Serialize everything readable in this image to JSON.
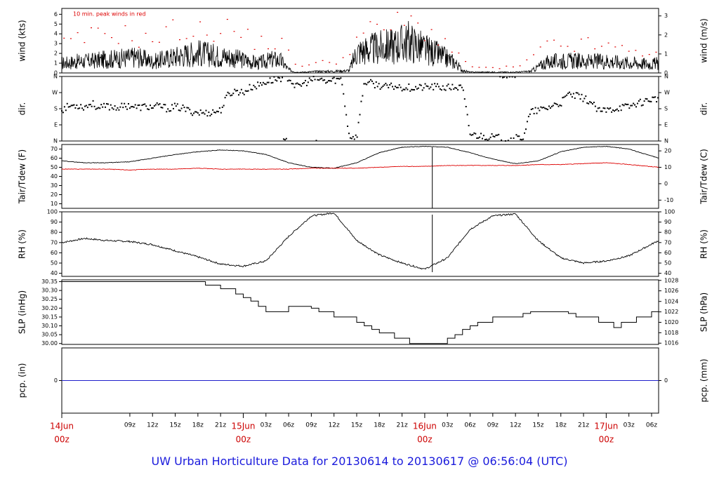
{
  "title": "UW Urban Horticulture Data for 20130614  to  20130617 @ 06:56:04  (UTC)",
  "colors": {
    "primary": "#000000",
    "secondary": "#dd0000",
    "baseline": "#2020cc",
    "date": "#cc0000",
    "title": "#1a1adc"
  },
  "time_axis": {
    "range_hours": [
      0,
      78.93
    ],
    "hour_ticks": [
      {
        "h": 9,
        "label": "09z"
      },
      {
        "h": 12,
        "label": "12z"
      },
      {
        "h": 15,
        "label": "15z"
      },
      {
        "h": 18,
        "label": "18z"
      },
      {
        "h": 21,
        "label": "21z"
      },
      {
        "h": 27,
        "label": "03z"
      },
      {
        "h": 30,
        "label": "06z"
      },
      {
        "h": 33,
        "label": "09z"
      },
      {
        "h": 36,
        "label": "12z"
      },
      {
        "h": 39,
        "label": "15z"
      },
      {
        "h": 42,
        "label": "18z"
      },
      {
        "h": 45,
        "label": "21z"
      },
      {
        "h": 51,
        "label": "03z"
      },
      {
        "h": 54,
        "label": "06z"
      },
      {
        "h": 57,
        "label": "09z"
      },
      {
        "h": 60,
        "label": "12z"
      },
      {
        "h": 63,
        "label": "15z"
      },
      {
        "h": 66,
        "label": "18z"
      },
      {
        "h": 69,
        "label": "21z"
      },
      {
        "h": 75,
        "label": "03z"
      },
      {
        "h": 78,
        "label": "06z"
      }
    ],
    "day_ticks": [
      {
        "h": 0,
        "label1": "14Jun",
        "label2": "00z"
      },
      {
        "h": 24,
        "label1": "15Jun",
        "label2": "00z"
      },
      {
        "h": 48,
        "label1": "16Jun",
        "label2": "00z"
      },
      {
        "h": 72,
        "label1": "17Jun",
        "label2": "00z"
      }
    ]
  },
  "chart_data": [
    {
      "type": "line",
      "panel": "wind",
      "ylabel": "wind (kts)",
      "ylabel_right": "wind (m/s)",
      "annotation": "10 min. peak winds in red",
      "ylim": [
        0,
        6.6
      ],
      "yticks": [
        0,
        1,
        2,
        3,
        4,
        5,
        6
      ],
      "right_ticks": [
        {
          "label": "0",
          "value": 0
        },
        {
          "label": "1",
          "value": 1.944
        },
        {
          "label": "2",
          "value": 3.888
        },
        {
          "label": "3",
          "value": 5.832
        }
      ],
      "series": [
        {
          "type": "line",
          "color": "#000000",
          "x": [
            0,
            2,
            4,
            6,
            8,
            10,
            12,
            14,
            16,
            18,
            20,
            22,
            24,
            26,
            28,
            29,
            30,
            31,
            32,
            34,
            36,
            38,
            39,
            40,
            42,
            44,
            46,
            48,
            50,
            52,
            53,
            54,
            56,
            58,
            60,
            62,
            64,
            66,
            68,
            70,
            72,
            74,
            76,
            78,
            78.93
          ],
          "y": [
            1.2,
            1.4,
            1.5,
            1.7,
            1.8,
            2.0,
            1.4,
            1.8,
            2.2,
            2.5,
            2.2,
            2.0,
            1.6,
            1.2,
            1.7,
            1.5,
            0.4,
            0.1,
            0.1,
            0.2,
            0.2,
            0.3,
            2.6,
            2.8,
            3.1,
            3.4,
            3.9,
            2.9,
            2.2,
            1.3,
            0.3,
            0.1,
            0.1,
            0.1,
            0.1,
            0.2,
            1.3,
            1.5,
            1.5,
            1.4,
            1.5,
            1.3,
            1.2,
            1.1,
            1.2
          ]
        },
        {
          "type": "scatter",
          "color": "#dd0000",
          "x": [
            1,
            3,
            5,
            7,
            9,
            11,
            13,
            15,
            17,
            19,
            21,
            23,
            25,
            27,
            29,
            31,
            33,
            35,
            37,
            39,
            41,
            43,
            45,
            47,
            49,
            51,
            53,
            55,
            57,
            59,
            61,
            63,
            65,
            67,
            69,
            71,
            73,
            75,
            77
          ],
          "y": [
            3.2,
            3.8,
            4.2,
            4.5,
            4.1,
            3.6,
            3.9,
            4.9,
            4.6,
            4.4,
            5.2,
            4.6,
            3.6,
            3.4,
            3.2,
            1.0,
            0.9,
            1.2,
            1.4,
            3.8,
            4.6,
            5.1,
            5.5,
            5.3,
            4.4,
            3.2,
            1.2,
            0.6,
            0.5,
            0.6,
            0.8,
            2.3,
            3.2,
            3.0,
            3.1,
            3.0,
            2.7,
            2.5,
            2.4
          ]
        }
      ]
    },
    {
      "type": "scatter",
      "panel": "direction",
      "ylabel": "dir.",
      "ylabel_right": "dir.",
      "ylim": [
        0,
        360
      ],
      "yticks": [
        {
          "label": "N",
          "value": 0
        },
        {
          "label": "E",
          "value": 90
        },
        {
          "label": "S",
          "value": 180
        },
        {
          "label": "W",
          "value": 270
        },
        {
          "label": "N",
          "value": 360
        }
      ],
      "series": [
        {
          "type": "scatter",
          "color": "#000000",
          "x": [
            0,
            1,
            2,
            3,
            4,
            5,
            6,
            7,
            8,
            9,
            10,
            11,
            12,
            13,
            14,
            15,
            16,
            17,
            18,
            19,
            20,
            21,
            22,
            23,
            24,
            25,
            26,
            27,
            28,
            29,
            30,
            31,
            32,
            33,
            34,
            35,
            36,
            37,
            38,
            39,
            40,
            41,
            42,
            43,
            44,
            45,
            46,
            47,
            48,
            49,
            50,
            51,
            52,
            53,
            54,
            55,
            56,
            57,
            58,
            59,
            60,
            61,
            62,
            63,
            64,
            65,
            66,
            67,
            68,
            69,
            70,
            71,
            72,
            73,
            74,
            75,
            76,
            77,
            78
          ],
          "y": [
            175,
            195,
            200,
            190,
            210,
            180,
            195,
            188,
            190,
            200,
            185,
            192,
            188,
            195,
            180,
            190,
            182,
            165,
            160,
            155,
            162,
            170,
            260,
            280,
            270,
            300,
            310,
            330,
            340,
            352,
            355,
            300,
            320,
            340,
            345,
            330,
            340,
            345,
            30,
            20,
            330,
            320,
            310,
            300,
            305,
            300,
            298,
            296,
            300,
            302,
            300,
            296,
            300,
            295,
            40,
            30,
            25,
            20,
            15,
            10,
            15,
            20,
            160,
            170,
            180,
            200,
            210,
            260,
            250,
            240,
            215,
            165,
            170,
            180,
            190,
            190,
            210,
            220,
            235
          ]
        }
      ]
    },
    {
      "type": "line",
      "panel": "temperature",
      "ylabel": "Tair/Tdew (F)",
      "ylabel_right": "Tair/Tdew (C)",
      "ylim": [
        5,
        75
      ],
      "yticks": [
        10,
        20,
        30,
        40,
        50,
        60,
        70
      ],
      "right_ticks": [
        {
          "label": "-10",
          "value": 14
        },
        {
          "label": "0",
          "value": 32
        },
        {
          "label": "10",
          "value": 50
        },
        {
          "label": "20",
          "value": 68
        }
      ],
      "series": [
        {
          "type": "line",
          "color": "#000000",
          "x": [
            0,
            3,
            6,
            9,
            12,
            15,
            18,
            21,
            24,
            27,
            30,
            33,
            36,
            39,
            42,
            45,
            48,
            51,
            54,
            57,
            60,
            63,
            66,
            69,
            72,
            75,
            78.93
          ],
          "y": [
            57,
            55,
            55,
            56,
            60,
            64,
            67,
            69,
            68,
            64,
            55,
            50,
            49,
            55,
            66,
            72,
            73,
            72,
            66,
            59,
            54,
            57,
            67,
            72,
            73,
            70,
            60
          ]
        },
        {
          "type": "line",
          "color": "#dd0000",
          "x": [
            0,
            3,
            6,
            9,
            12,
            15,
            18,
            21,
            24,
            27,
            30,
            33,
            36,
            39,
            42,
            45,
            48,
            51,
            54,
            57,
            60,
            63,
            66,
            69,
            72,
            75,
            78.93
          ],
          "y": [
            48,
            48,
            48,
            47,
            48,
            48,
            49,
            48,
            48,
            48,
            48,
            49,
            49,
            49,
            50,
            51,
            51,
            52,
            52,
            52,
            52,
            53,
            53,
            54,
            55,
            53,
            50
          ]
        }
      ]
    },
    {
      "type": "line",
      "panel": "humidity",
      "ylabel": "RH (%)",
      "ylabel_right": "RH (%)",
      "ylim": [
        37,
        100
      ],
      "yticks": [
        40,
        50,
        60,
        70,
        80,
        90,
        100
      ],
      "series": [
        {
          "type": "line",
          "color": "#000000",
          "x": [
            0,
            3,
            6,
            9,
            12,
            15,
            18,
            21,
            24,
            27,
            30,
            33,
            36,
            39,
            42,
            45,
            48,
            51,
            54,
            57,
            60,
            63,
            66,
            69,
            72,
            75,
            78.93
          ],
          "y": [
            70,
            74,
            72,
            71,
            68,
            62,
            56,
            49,
            47,
            52,
            76,
            96,
            99,
            72,
            58,
            50,
            44,
            55,
            83,
            96,
            98,
            72,
            55,
            50,
            52,
            57,
            72
          ]
        }
      ]
    },
    {
      "type": "line",
      "panel": "pressure",
      "ylabel": "SLP (inHg)",
      "ylabel_right": "SLP (hPa)",
      "ylim": [
        29.995,
        30.36
      ],
      "yticks": [
        30.0,
        30.05,
        30.1,
        30.15,
        30.2,
        30.25,
        30.3,
        30.35
      ],
      "right_ticks": [
        {
          "label": "1016",
          "value": 30.002
        },
        {
          "label": "1018",
          "value": 30.061
        },
        {
          "label": "1020",
          "value": 30.12
        },
        {
          "label": "1022",
          "value": 30.179
        },
        {
          "label": "1024",
          "value": 30.238
        },
        {
          "label": "1026",
          "value": 30.298
        },
        {
          "label": "1028",
          "value": 30.357
        }
      ],
      "series": [
        {
          "type": "line",
          "color": "#000000",
          "x": [
            0,
            18,
            19,
            20,
            21,
            22,
            23,
            24,
            25,
            26,
            27,
            28,
            29,
            30,
            31,
            32,
            33,
            34,
            35,
            36,
            37,
            38,
            39,
            40,
            41,
            42,
            43,
            44,
            45,
            46,
            47,
            48,
            49,
            50,
            51,
            52,
            53,
            54,
            55,
            56,
            57,
            58,
            59,
            60,
            61,
            62,
            63,
            64,
            65,
            66,
            67,
            68,
            69,
            70,
            71,
            72,
            73,
            74,
            75,
            76,
            77,
            78,
            78.93
          ],
          "y": [
            30.35,
            30.35,
            30.33,
            30.33,
            30.31,
            30.31,
            30.28,
            30.26,
            30.24,
            30.21,
            30.18,
            30.18,
            30.18,
            30.21,
            30.21,
            30.21,
            30.2,
            30.18,
            30.18,
            30.15,
            30.15,
            30.15,
            30.12,
            30.1,
            30.08,
            30.06,
            30.06,
            30.03,
            30.03,
            30.0,
            30.0,
            30.0,
            30.0,
            30.0,
            30.03,
            30.05,
            30.08,
            30.1,
            30.12,
            30.12,
            30.15,
            30.15,
            30.15,
            30.15,
            30.17,
            30.18,
            30.18,
            30.18,
            30.18,
            30.18,
            30.17,
            30.15,
            30.15,
            30.15,
            30.12,
            30.12,
            30.09,
            30.12,
            30.12,
            30.15,
            30.15,
            30.18,
            30.21
          ]
        }
      ]
    },
    {
      "type": "line",
      "panel": "precipitation",
      "ylabel": "pcp. (in)",
      "ylabel_right": "pcp. (mm)",
      "ylim": [
        -1,
        1
      ],
      "yticks": [
        0
      ],
      "right_ticks": [
        {
          "label": "0",
          "value": 0
        }
      ],
      "series": [
        {
          "type": "line",
          "color": "#2020cc",
          "x": [
            0,
            78.93
          ],
          "y": [
            0,
            0
          ]
        }
      ]
    }
  ]
}
